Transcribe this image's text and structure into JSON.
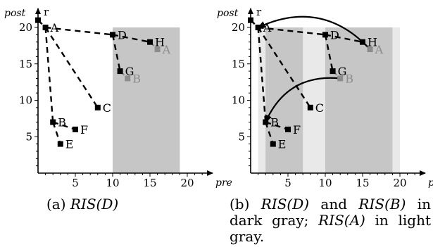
{
  "plots": [
    {
      "id": "a",
      "axis_y_label": "post",
      "axis_x_label": "pre",
      "x_ticks": [
        "5",
        "10",
        "15",
        "20"
      ],
      "y_ticks": [
        "5",
        "10",
        "15",
        "20"
      ],
      "root_label": "r",
      "dark_regions": [
        {
          "x0": 10,
          "x1": 19,
          "y0": 0,
          "y1": 20
        }
      ],
      "light_regions": [],
      "nodes": [
        {
          "id": "r",
          "x": 0,
          "y": 21,
          "label": "",
          "style": "black"
        },
        {
          "id": "A",
          "x": 1,
          "y": 20,
          "label": "A",
          "style": "black"
        },
        {
          "id": "B",
          "x": 2,
          "y": 7,
          "label": "B",
          "style": "black"
        },
        {
          "id": "C",
          "x": 8,
          "y": 9,
          "label": "C",
          "style": "black"
        },
        {
          "id": "D",
          "x": 10,
          "y": 19,
          "label": "D",
          "style": "black"
        },
        {
          "id": "E",
          "x": 3,
          "y": 4,
          "label": "E",
          "style": "black"
        },
        {
          "id": "F",
          "x": 5,
          "y": 6,
          "label": "F",
          "style": "black"
        },
        {
          "id": "G",
          "x": 11,
          "y": 14,
          "label": "G",
          "style": "black"
        },
        {
          "id": "H",
          "x": 15,
          "y": 18,
          "label": "H",
          "style": "black"
        },
        {
          "id": "A2",
          "x": 16,
          "y": 17,
          "label": "A",
          "style": "gray"
        },
        {
          "id": "B2",
          "x": 12,
          "y": 13,
          "label": "B",
          "style": "gray"
        }
      ],
      "edges": [
        [
          "r",
          "A"
        ],
        [
          "A",
          "B"
        ],
        [
          "A",
          "C"
        ],
        [
          "A",
          "D"
        ],
        [
          "B",
          "E"
        ],
        [
          "B",
          "F"
        ],
        [
          "D",
          "G"
        ],
        [
          "D",
          "H"
        ],
        [
          "H",
          "A2"
        ],
        [
          "G",
          "B2"
        ]
      ],
      "arcs": []
    },
    {
      "id": "b",
      "axis_y_label": "post",
      "axis_x_label": "pre",
      "x_ticks": [
        "5",
        "10",
        "15",
        "20"
      ],
      "y_ticks": [
        "5",
        "10",
        "15",
        "20"
      ],
      "root_label": "r",
      "dark_regions": [
        {
          "x0": 2,
          "x1": 7,
          "y0": 0,
          "y1": 20
        },
        {
          "x0": 10,
          "x1": 19,
          "y0": 0,
          "y1": 20
        }
      ],
      "light_regions": [
        {
          "x0": 1,
          "x1": 20,
          "y0": 0,
          "y1": 20
        }
      ],
      "nodes": [
        {
          "id": "r",
          "x": 0,
          "y": 21,
          "label": "",
          "style": "black"
        },
        {
          "id": "A",
          "x": 1,
          "y": 20,
          "label": "A",
          "style": "black"
        },
        {
          "id": "B",
          "x": 2,
          "y": 7,
          "label": "B",
          "style": "black"
        },
        {
          "id": "C",
          "x": 8,
          "y": 9,
          "label": "C",
          "style": "black"
        },
        {
          "id": "D",
          "x": 10,
          "y": 19,
          "label": "D",
          "style": "black"
        },
        {
          "id": "E",
          "x": 3,
          "y": 4,
          "label": "E",
          "style": "black"
        },
        {
          "id": "F",
          "x": 5,
          "y": 6,
          "label": "F",
          "style": "black"
        },
        {
          "id": "G",
          "x": 11,
          "y": 14,
          "label": "G",
          "style": "black"
        },
        {
          "id": "H",
          "x": 15,
          "y": 18,
          "label": "H",
          "style": "black"
        },
        {
          "id": "A2",
          "x": 16,
          "y": 17,
          "label": "A",
          "style": "gray"
        },
        {
          "id": "B2",
          "x": 12,
          "y": 13,
          "label": "B",
          "style": "gray"
        }
      ],
      "edges": [
        [
          "r",
          "A"
        ],
        [
          "A",
          "B"
        ],
        [
          "A",
          "C"
        ],
        [
          "A",
          "D"
        ],
        [
          "B",
          "E"
        ],
        [
          "B",
          "F"
        ],
        [
          "D",
          "G"
        ],
        [
          "D",
          "H"
        ],
        [
          "H",
          "A2"
        ],
        [
          "G",
          "B2"
        ]
      ],
      "arcs": [
        {
          "from": "A2",
          "to": "A"
        },
        {
          "from": "B2",
          "to": "B"
        }
      ]
    }
  ],
  "captions": {
    "a": {
      "prefix": "(a) ",
      "expr": "RIS(D)"
    },
    "b": {
      "prefix": "(b) ",
      "expr1": "RIS(D)",
      "and": " and ",
      "expr2": "RIS(B)",
      "mid": " in dark gray; ",
      "expr3": "RIS(A)",
      "tail": " in light gray."
    }
  },
  "colors": {
    "dark_region": "#c6c6c6",
    "light_region": "#e9e9e9",
    "gray_node": "#8c8c8c",
    "black": "#000000"
  }
}
